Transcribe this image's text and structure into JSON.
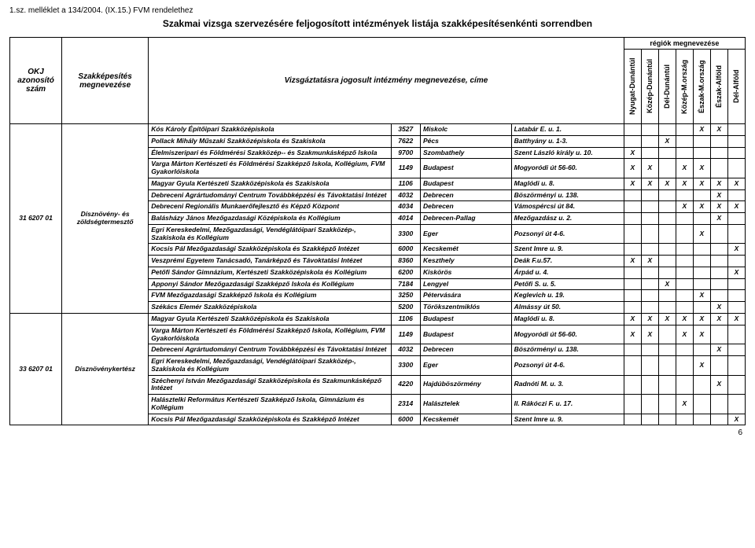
{
  "header": {
    "attachment_label": "1.sz. melléklet a 134/2004. (IX.15.) FVM rendelethez",
    "title": "Szakmai vizsga szervezésére feljogosított intézmények listája szakképesítésenkénti sorrendben",
    "col_okj": "OKJ azonosító szám",
    "col_szak": "Szakképesítés megnevezése",
    "col_intez": "Vizsgáztatásra jogosult intézmény megnevezése, címe",
    "regions_title": "régiók megnevezése",
    "regions": [
      "Nyugat-Dunántúl",
      "Közép-Dunántúl",
      "Dél-Dunántúl",
      "Közép-M.ország",
      "Észak-M.ország",
      "Észak-Alföld",
      "Dél-Alföld"
    ]
  },
  "groups": [
    {
      "okj": "31 6207 01",
      "szak": "Dísznövény- és zöldségtermesztő",
      "rows": [
        {
          "intez": "Kós Károly Építőipari Szakközépiskola",
          "zip": "3527",
          "city": "Miskolc",
          "addr": "Latabár E. u. 1.",
          "r": [
            "",
            "",
            "",
            "",
            "X",
            "X",
            ""
          ]
        },
        {
          "intez": "Pollack Mihály Műszaki Szakközépiskola és Szakiskola",
          "zip": "7622",
          "city": "Pécs",
          "addr": "Batthyány u. 1-3.",
          "r": [
            "",
            "",
            "X",
            "",
            "",
            "",
            ""
          ]
        },
        {
          "intez": "Élelmiszeripari és Földmérési Szakközép-- és Szakmunkásképző Iskola",
          "zip": "9700",
          "city": "Szombathely",
          "addr": "Szent László király u. 10.",
          "r": [
            "X",
            "",
            "",
            "",
            "",
            "",
            ""
          ]
        },
        {
          "intez": "Varga Márton Kertészeti és Földmérési Szakképző Iskola, Kollégium, FVM Gyakorlóiskola",
          "zip": "1149",
          "city": "Budapest",
          "addr": "Mogyoródi út 56-60.",
          "r": [
            "X",
            "X",
            "",
            "X",
            "X",
            "",
            ""
          ]
        },
        {
          "intez": "Magyar Gyula Kertészeti Szakközépiskola és Szakiskola",
          "zip": "1106",
          "city": "Budapest",
          "addr": "Maglódi u. 8.",
          "r": [
            "X",
            "X",
            "X",
            "X",
            "X",
            "X",
            "X"
          ]
        },
        {
          "intez": " Debreceni Agrártudományi Centrum Továbbképzési és Távoktatási Intézet",
          "zip": "4032",
          "city": "Debrecen",
          "addr": "Böszörményi u. 138.",
          "r": [
            "",
            "",
            "",
            "",
            "",
            "X",
            ""
          ]
        },
        {
          "intez": "Debreceni Regionális Munkaerőfejlesztő és Képző Központ",
          "zip": "4034",
          "city": "Debrecen",
          "addr": "Vámospércsi út 84.",
          "r": [
            "",
            "",
            "",
            "X",
            "X",
            "X",
            "X"
          ]
        },
        {
          "intez": "Balásházy János Mezőgazdasági Középiskola és Kollégium",
          "zip": "4014",
          "city": "Debrecen-Pallag",
          "addr": "Mezőgazdász u. 2.",
          "r": [
            "",
            "",
            "",
            "",
            "",
            "X",
            ""
          ]
        },
        {
          "intez": "Egri Kereskedelmi, Mezőgazdasági, Vendéglátóipari Szakközép-, Szakiskola és Kollégium",
          "zip": "3300",
          "city": "Eger",
          "addr": "Pozsonyi út 4-6.",
          "r": [
            "",
            "",
            "",
            "",
            "X",
            "",
            ""
          ]
        },
        {
          "intez": "Kocsis Pál Mezőgazdasági Szakközépiskola és Szakképző Intézet",
          "zip": "6000",
          "city": "Kecskemét",
          "addr": "Szent Imre u. 9.",
          "r": [
            "",
            "",
            "",
            "",
            "",
            "",
            "X"
          ]
        },
        {
          "intez": "Veszprémi Egyetem Tanácsadó, Tanárképző és Távoktatási Intézet",
          "zip": "8360",
          "city": "Keszthely",
          "addr": "Deák F.u.57.",
          "r": [
            "X",
            "X",
            "",
            "",
            "",
            "",
            ""
          ]
        },
        {
          "intez": "Petőfi Sándor  Gimnázium, Kertészeti Szakközépiskola és Kollégium",
          "zip": "6200",
          "city": "Kiskörös",
          "addr": "Árpád u. 4.",
          "r": [
            "",
            "",
            "",
            "",
            "",
            "",
            "X"
          ]
        },
        {
          "intez": "Apponyi Sándor Mezőgazdasági Szakképző Iskola és Kollégium",
          "zip": "7184",
          "city": "Lengyel",
          "addr": "Petőfi S. u. 5.",
          "r": [
            "",
            "",
            "X",
            "",
            "",
            "",
            ""
          ]
        },
        {
          "intez": "FVM Mezőgazdasági Szakképző Iskola és Kollégium",
          "zip": "3250",
          "city": "Pétervására",
          "addr": "Keglevich u. 19.",
          "r": [
            "",
            "",
            "",
            "",
            "X",
            "",
            ""
          ]
        },
        {
          "intez": "Székács Elemér Szakközépiskola",
          "zip": "5200",
          "city": "Törökszentmiklós",
          "addr": "Almássy út 50.",
          "r": [
            "",
            "",
            "",
            "",
            "",
            "X",
            ""
          ]
        }
      ]
    },
    {
      "okj": "33 6207 01",
      "szak": "Dísznövénykertész",
      "rows": [
        {
          "intez": "Magyar Gyula Kertészeti Szakközépiskola és Szakiskola",
          "zip": "1106",
          "city": "Budapest",
          "addr": "Maglódi u. 8.",
          "r": [
            "X",
            "X",
            "X",
            "X",
            "X",
            "X",
            "X"
          ]
        },
        {
          "intez": "Varga Márton Kertészeti és Földmérési Szakképző Iskola, Kollégium, FVM Gyakorlóiskola",
          "zip": "1149",
          "city": "Budapest",
          "addr": "Mogyoródi út 56-60.",
          "r": [
            "X",
            "X",
            "",
            "X",
            "X",
            "",
            ""
          ]
        },
        {
          "intez": " Debreceni Agrártudományi Centrum Továbbképzési és Távoktatási Intézet",
          "zip": "4032",
          "city": "Debrecen",
          "addr": "Böszörményi u. 138.",
          "r": [
            "",
            "",
            "",
            "",
            "",
            "X",
            ""
          ]
        },
        {
          "intez": "Egri Kereskedelmi, Mezőgazdasági, Vendéglátóipari Szakközép-, Szakiskola és Kollégium",
          "zip": "3300",
          "city": "Eger",
          "addr": "Pozsonyi út 4-6.",
          "r": [
            "",
            "",
            "",
            "",
            "X",
            "",
            ""
          ]
        },
        {
          "intez": "Széchenyi István Mezőgazdasági Szakközépiskola  és Szakmunkásképző Intézet",
          "zip": "4220",
          "city": "Hajdúböszörmény",
          "addr": "Radnóti M. u. 3.",
          "r": [
            "",
            "",
            "",
            "",
            "",
            "X",
            ""
          ]
        },
        {
          "intez": "Halásztelki Református Kertészeti Szakképző Iskola, Gimnázium és Kollégium",
          "zip": "2314",
          "city": "Halásztelek",
          "addr": "II. Rákóczi F.  u. 17.",
          "r": [
            "",
            "",
            "",
            "X",
            "",
            "",
            ""
          ]
        },
        {
          "intez": "Kocsis Pál Mezőgazdasági Szakközépiskola és Szakképző Intézet",
          "zip": "6000",
          "city": "Kecskemét",
          "addr": "Szent Imre u. 9.",
          "r": [
            "",
            "",
            "",
            "",
            "",
            "",
            "X"
          ]
        }
      ]
    }
  ],
  "page_number": "6"
}
